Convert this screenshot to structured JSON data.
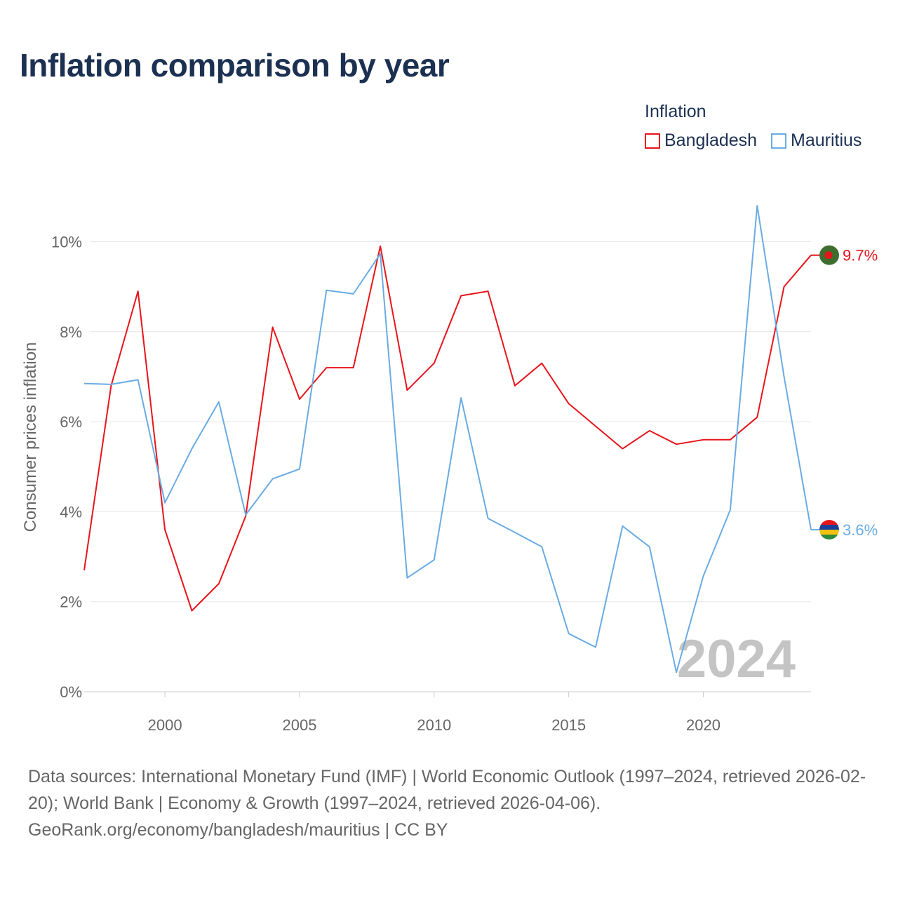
{
  "title": "Inflation comparison by year",
  "legend": {
    "title": "Inflation",
    "items": [
      {
        "name": "Bangladesh",
        "color": "#e8141b"
      },
      {
        "name": "Mauritius",
        "color": "#6aabe3"
      }
    ]
  },
  "watermark_year": "2024",
  "footer": {
    "line1": "Data sources: International Monetary Fund (IMF) | World Economic Outlook (1997–2024, retrieved 2026-02-20); World Bank | Economy & Growth (1997–2024, retrieved 2026-04-06).",
    "line2": "GeoRank.org/economy/bangladesh/mauritius | CC BY"
  },
  "chart_data": {
    "type": "line",
    "title": "Inflation comparison by year",
    "xlabel": "",
    "ylabel": "Consumer prices inflation",
    "xlim": [
      1997,
      2024
    ],
    "ylim": [
      0,
      10
    ],
    "x_ticks": [
      2000,
      2005,
      2010,
      2015,
      2020
    ],
    "y_ticks": [
      0,
      2,
      4,
      6,
      8,
      10
    ],
    "y_tick_labels": [
      "0%",
      "2%",
      "4%",
      "6%",
      "8%",
      "10%"
    ],
    "grid": true,
    "x": [
      1997,
      1998,
      1999,
      2000,
      2001,
      2002,
      2003,
      2004,
      2005,
      2006,
      2007,
      2008,
      2009,
      2010,
      2011,
      2012,
      2013,
      2014,
      2015,
      2016,
      2017,
      2018,
      2019,
      2020,
      2021,
      2022,
      2023,
      2024
    ],
    "series": [
      {
        "name": "Bangladesh",
        "color": "#e8141b",
        "values": [
          2.7,
          6.8,
          8.9,
          3.6,
          1.8,
          2.4,
          3.9,
          8.1,
          6.5,
          7.2,
          7.2,
          9.9,
          6.7,
          7.3,
          8.8,
          8.9,
          6.8,
          7.3,
          6.4,
          5.9,
          5.4,
          5.8,
          5.5,
          5.6,
          5.6,
          6.1,
          9.0,
          9.7
        ],
        "end_label": "9.7%"
      },
      {
        "name": "Mauritius",
        "color": "#6aabe3",
        "values": [
          6.85,
          6.83,
          6.93,
          4.2,
          5.4,
          6.44,
          3.93,
          4.73,
          4.95,
          8.92,
          8.84,
          9.73,
          2.53,
          2.93,
          6.53,
          3.85,
          3.54,
          3.22,
          1.29,
          0.99,
          3.68,
          3.22,
          0.43,
          2.57,
          4.04,
          10.8,
          7.0,
          3.6
        ],
        "end_label": "3.6%"
      }
    ]
  }
}
